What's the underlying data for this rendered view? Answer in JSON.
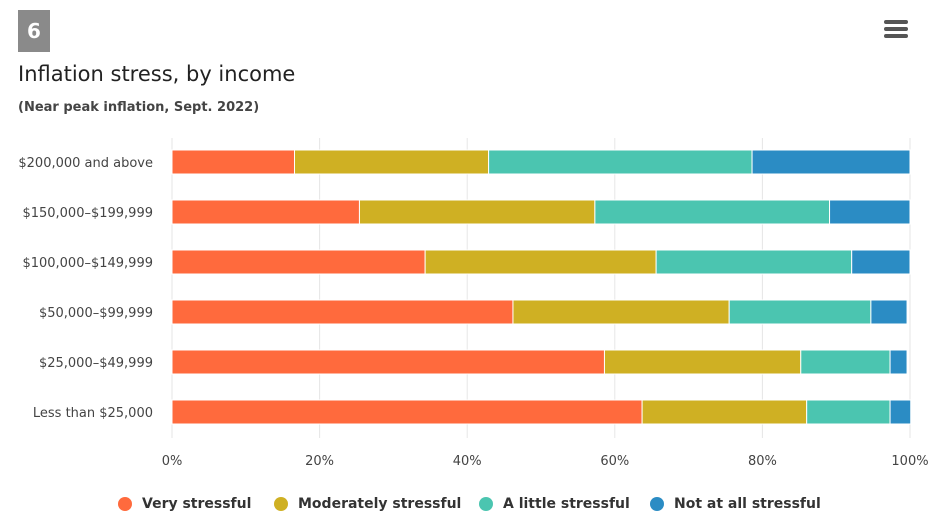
{
  "badge": "6",
  "menu_icon": "hamburger-menu-icon",
  "chart_data": {
    "type": "bar",
    "orientation": "horizontal",
    "stacked": true,
    "title": "Inflation stress, by income",
    "subtitle": "(Near peak inflation, Sept. 2022)",
    "categories": [
      "$200,000 and above",
      "$150,000–$199,999",
      "$100,000–$149,999",
      "$50,000–$99,999",
      "$25,000–$49,999",
      "Less than $25,000"
    ],
    "series": [
      {
        "name": "Very stressful",
        "color": "#ff6a3d",
        "values": [
          16.6,
          25.4,
          34.3,
          46.2,
          58.6,
          63.7
        ]
      },
      {
        "name": "Moderately stressful",
        "color": "#cfb023",
        "values": [
          26.3,
          31.9,
          31.3,
          29.3,
          26.6,
          22.3
        ]
      },
      {
        "name": "A little stressful",
        "color": "#4bc5b0",
        "values": [
          35.7,
          31.8,
          26.5,
          19.2,
          12.1,
          11.3
        ]
      },
      {
        "name": "Not at all stressful",
        "color": "#2b8cc4",
        "values": [
          21.4,
          10.9,
          7.9,
          4.9,
          2.3,
          2.8
        ]
      }
    ],
    "xaxis": {
      "ticks": [
        "0%",
        "20%",
        "40%",
        "60%",
        "80%",
        "100%"
      ],
      "range": [
        0,
        100
      ]
    },
    "grid": true,
    "legend": "bottom"
  }
}
